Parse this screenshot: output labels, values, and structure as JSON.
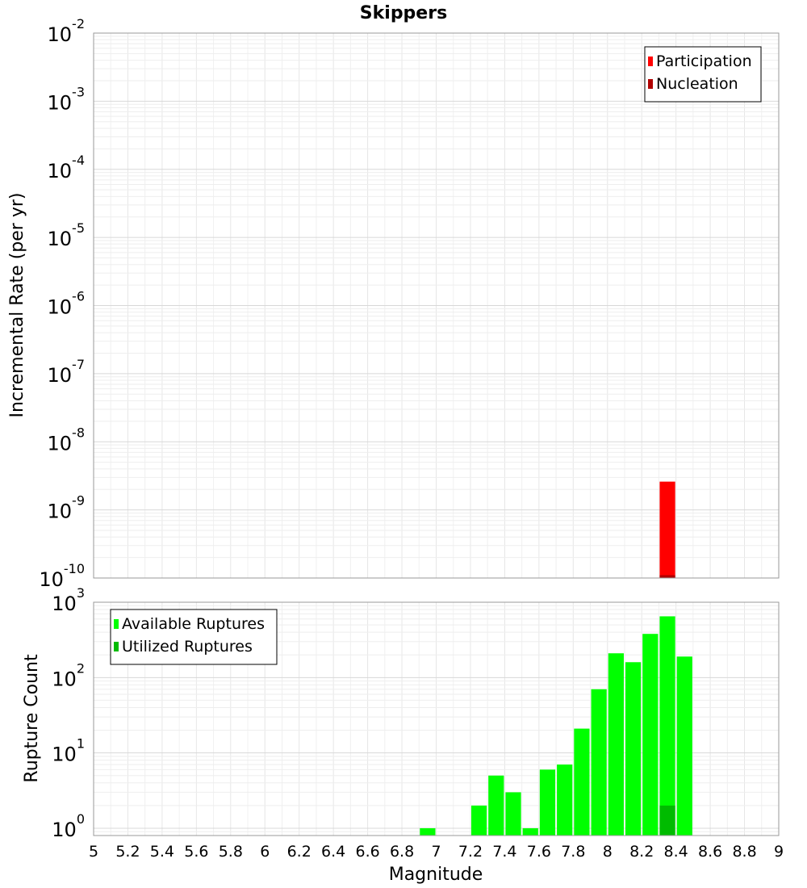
{
  "title": "Skippers",
  "xlabel": "Magnitude",
  "x_ticks": [
    "5",
    "5.2",
    "5.4",
    "5.6",
    "5.8",
    "6",
    "6.2",
    "6.4",
    "6.6",
    "6.8",
    "7",
    "7.2",
    "7.4",
    "7.6",
    "7.8",
    "8",
    "8.2",
    "8.4",
    "8.6",
    "8.8",
    "9"
  ],
  "chart_data": [
    {
      "type": "bar",
      "ylabel": "Incremental Rate (per yr)",
      "yscale": "log",
      "xlim": [
        5,
        9
      ],
      "ylim": [
        1e-10,
        0.01
      ],
      "y_ticks": [
        {
          "base": "10",
          "exp": "-10"
        },
        {
          "base": "10",
          "exp": "-9"
        },
        {
          "base": "10",
          "exp": "-8"
        },
        {
          "base": "10",
          "exp": "-7"
        },
        {
          "base": "10",
          "exp": "-6"
        },
        {
          "base": "10",
          "exp": "-5"
        },
        {
          "base": "10",
          "exp": "-4"
        },
        {
          "base": "10",
          "exp": "-3"
        },
        {
          "base": "10",
          "exp": "-2"
        }
      ],
      "grid": true,
      "legend_position": "top-right",
      "series": [
        {
          "name": "Participation",
          "color": "#ff0000",
          "x": [
            8.35
          ],
          "values": [
            2.6e-09
          ]
        },
        {
          "name": "Nucleation",
          "color": "#b00000",
          "x": [
            8.35
          ],
          "values": [
            1.1e-10
          ]
        }
      ]
    },
    {
      "type": "bar",
      "ylabel": "Rupture Count",
      "yscale": "log",
      "xlim": [
        5,
        9
      ],
      "ylim": [
        0.8,
        1000
      ],
      "y_ticks": [
        {
          "base": "10",
          "exp": "0"
        },
        {
          "base": "10",
          "exp": "1"
        },
        {
          "base": "10",
          "exp": "2"
        },
        {
          "base": "10",
          "exp": "3"
        }
      ],
      "grid": true,
      "legend_position": "top-left",
      "series": [
        {
          "name": "Available Ruptures",
          "color": "#00ff00",
          "x": [
            6.95,
            7.25,
            7.35,
            7.45,
            7.55,
            7.65,
            7.75,
            7.85,
            7.95,
            8.05,
            8.15,
            8.25,
            8.35,
            8.45
          ],
          "values": [
            1,
            2,
            5,
            3,
            1,
            6,
            7,
            21,
            70,
            210,
            160,
            380,
            650,
            190
          ]
        },
        {
          "name": "Utilized Ruptures",
          "color": "#00bb00",
          "x": [
            8.35
          ],
          "values": [
            2
          ]
        }
      ]
    }
  ]
}
